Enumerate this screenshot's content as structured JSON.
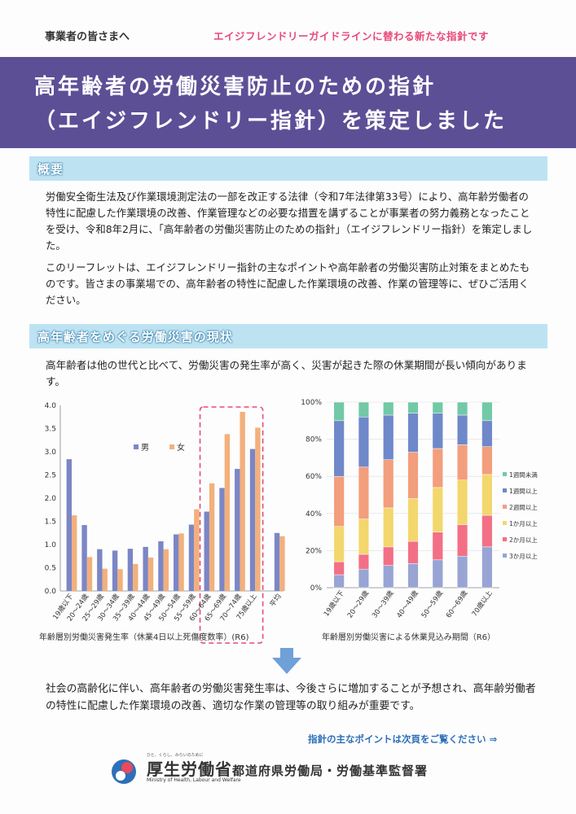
{
  "header": {
    "audience": "事業者の皆さまへ",
    "tagline": "エイジフレンドリーガイドラインに替わる新たな指針です"
  },
  "title": {
    "line1": "高年齢者の労働災害防止のための指針",
    "line2": "（エイジフレンドリー指針）を策定しました"
  },
  "sections": {
    "overview": {
      "heading": "概要"
    },
    "current_state": {
      "heading": "高年齢者をめぐる労働災害の現状"
    }
  },
  "paragraphs": {
    "p1": "労働安全衛生法及び作業環境測定法の一部を改正する法律（令和7年法律第33号）により、高年齢労働者の特性に配慮した作業環境の改善、作業管理などの必要な措置を講ずることが事業者の努力義務となったことを受け、令和8年2月に、「高年齢者の労働災害防止のための指針」（エイジフレンドリー指針）を策定しました。",
    "p2": "このリーフレットは、エイジフレンドリー指針の主なポイントや高年齢者の労働災害防止対策をまとめたものです。皆さまの事業場での、高年齢者の特性に配慮した作業環境の改善、作業の管理等に、ぜひご活用ください。",
    "p3": "高年齢者は他の世代と比べて、労働災害の発生率が高く、災害が起きた際の休業期間が長い傾向があります。",
    "p4": "社会の高齢化に伴い、高年齢者の労働災害発生率は、今後さらに増加することが予想され、高年齢労働者の特性に配慮した作業環境の改善、適切な作業の管理等の取り組みが重要です。"
  },
  "footer": {
    "next_page_note": "指針の主なポイントは次頁をご覧ください ⇒",
    "ministry_name": "厚生労働省",
    "ministry_english": "Ministry of Health, Labour and Welfare",
    "ministry_motto": "ひと、くらし、みらいのために",
    "issuer": "都道府県労働局・労働基準監督署"
  },
  "chart_data": [
    {
      "type": "bar",
      "title": "年齢層別労働災害発生率（休業4日以上死傷度数率）(R6)",
      "categories": [
        "19歳以下",
        "20～24歳",
        "25～29歳",
        "30～34歳",
        "35～39歳",
        "40～44歳",
        "45～49歳",
        "50～54歳",
        "55～59歳",
        "60～64歳",
        "65～69歳",
        "70～74歳",
        "75歳以上",
        "平均"
      ],
      "series": [
        {
          "name": "男",
          "color": "#7b86c6",
          "values": [
            2.84,
            1.42,
            0.9,
            0.87,
            0.91,
            0.95,
            1.07,
            1.22,
            1.43,
            1.71,
            2.22,
            2.63,
            3.06,
            1.25
          ]
        },
        {
          "name": "女",
          "color": "#f2b07c",
          "values": [
            1.63,
            0.73,
            0.48,
            0.47,
            0.58,
            0.72,
            0.9,
            1.24,
            1.76,
            2.32,
            3.38,
            3.86,
            3.52,
            1.18
          ]
        }
      ],
      "ylim": [
        0,
        4.0
      ],
      "yticks": [
        "0.0",
        "0.5",
        "1.0",
        "1.5",
        "2.0",
        "2.5",
        "3.0",
        "3.5",
        "4.0"
      ],
      "highlight_categories": [
        "60～64歳",
        "65～69歳",
        "70～74歳",
        "75歳以上"
      ],
      "legend": "top-left"
    },
    {
      "type": "bar",
      "stacked": true,
      "title": "年齢層別労働災害による休業見込み期間（R6）",
      "categories": [
        "19歳以下",
        "20～29歳",
        "30～39歳",
        "40～49歳",
        "50～59歳",
        "60～69歳",
        "70歳以上"
      ],
      "series": [
        {
          "name": "3か月以上",
          "color": "#98a4d4",
          "values": [
            7,
            10,
            12,
            13,
            15,
            17,
            22
          ]
        },
        {
          "name": "2か月以上",
          "color": "#f36f86",
          "values": [
            7,
            8,
            10,
            12,
            15,
            17,
            17
          ]
        },
        {
          "name": "1か月以上",
          "color": "#f3d76d",
          "values": [
            19,
            19,
            21,
            23,
            24,
            24,
            22
          ]
        },
        {
          "name": "2週間以上",
          "color": "#f39e7c",
          "values": [
            27,
            28,
            26,
            25,
            21,
            19,
            15
          ]
        },
        {
          "name": "1週間以上",
          "color": "#6f88c9",
          "values": [
            30,
            27,
            24,
            21,
            19,
            16,
            14
          ]
        },
        {
          "name": "1週間未満",
          "color": "#72c9a6",
          "values": [
            10,
            8,
            7,
            6,
            6,
            7,
            10
          ]
        }
      ],
      "ylim": [
        0,
        100
      ],
      "yticks": [
        "0%",
        "20%",
        "40%",
        "60%",
        "80%",
        "100%"
      ],
      "legend": "right"
    }
  ]
}
